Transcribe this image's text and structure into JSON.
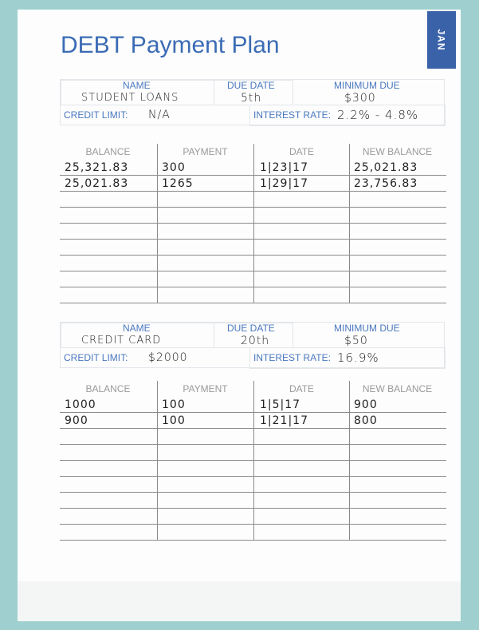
{
  "title": "DEBT Payment Plan",
  "month_tab": "JAN",
  "labels": {
    "name": "NAME",
    "due_date": "DUE DATE",
    "minimum_due": "MINIMUM DUE",
    "credit_limit": "CREDIT LIMIT:",
    "interest_rate": "INTEREST RATE:"
  },
  "columns": [
    "BALANCE",
    "PAYMENT",
    "DATE",
    "NEW BALANCE"
  ],
  "debts": [
    {
      "name": "STUDENT LOANS",
      "due_date": "5th",
      "minimum_due": "$300",
      "credit_limit": "N/A",
      "interest_rate": "2.2% - 4.8%",
      "rows": [
        [
          "25,321.83",
          "300",
          "1|23|17",
          "25,021.83"
        ],
        [
          "25,021.83",
          "1265",
          "1|29|17",
          "23,756.83"
        ],
        [
          "",
          "",
          "",
          ""
        ],
        [
          "",
          "",
          "",
          ""
        ],
        [
          "",
          "",
          "",
          ""
        ],
        [
          "",
          "",
          "",
          ""
        ],
        [
          "",
          "",
          "",
          ""
        ],
        [
          "",
          "",
          "",
          ""
        ],
        [
          "",
          "",
          "",
          ""
        ]
      ]
    },
    {
      "name": "CREDIT CARD",
      "due_date": "20th",
      "minimum_due": "$50",
      "credit_limit": "$2000",
      "interest_rate": "16.9%",
      "rows": [
        [
          "1000",
          "100",
          "1|5|17",
          "900"
        ],
        [
          "900",
          "100",
          "1|21|17",
          "800"
        ],
        [
          "",
          "",
          "",
          ""
        ],
        [
          "",
          "",
          "",
          ""
        ],
        [
          "",
          "",
          "",
          ""
        ],
        [
          "",
          "",
          "",
          ""
        ],
        [
          "",
          "",
          "",
          ""
        ],
        [
          "",
          "",
          "",
          ""
        ],
        [
          "",
          "",
          "",
          ""
        ]
      ]
    }
  ]
}
